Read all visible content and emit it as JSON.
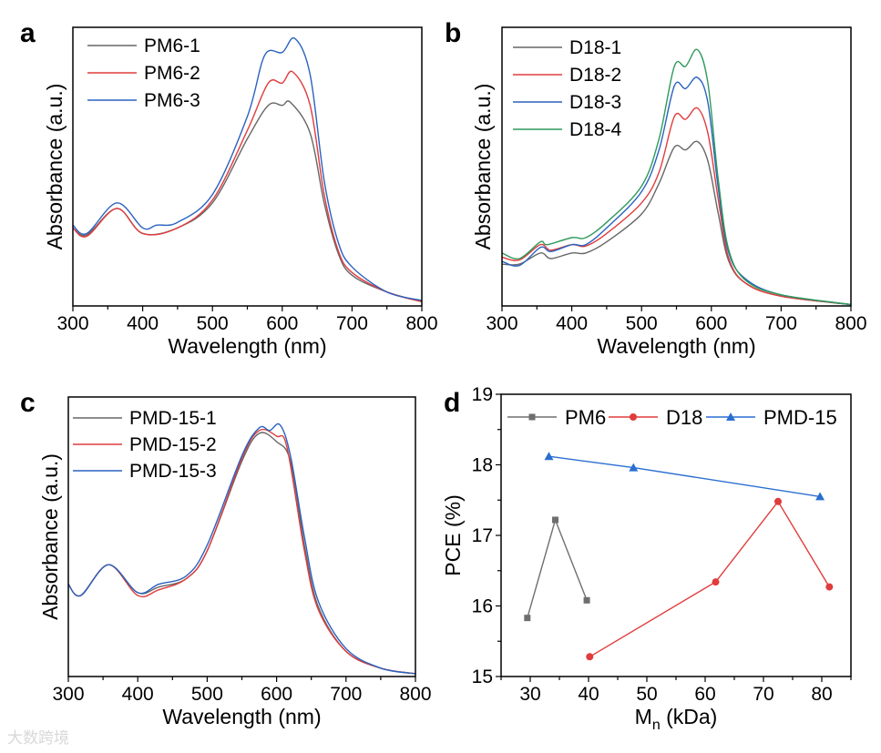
{
  "watermark": "大数跨境",
  "chart_data": [
    {
      "panel": "a",
      "type": "line",
      "xlabel": "Wavelength (nm)",
      "ylabel": "Absorbance (a.u.)",
      "xlim": [
        300,
        800
      ],
      "ylim": [
        0,
        1
      ],
      "xticks": [
        300,
        400,
        500,
        600,
        700,
        800
      ],
      "legend_position": "top-left",
      "series": [
        {
          "name": "PM6-1",
          "color": "#666666",
          "x": [
            300,
            320,
            363,
            400,
            450,
            500,
            550,
            580,
            600,
            612,
            640,
            660,
            680,
            700,
            750,
            800
          ],
          "y": [
            0.28,
            0.255,
            0.35,
            0.26,
            0.28,
            0.37,
            0.6,
            0.72,
            0.72,
            0.73,
            0.62,
            0.37,
            0.19,
            0.11,
            0.05,
            0.015
          ]
        },
        {
          "name": "PM6-2",
          "color": "#e03c3c",
          "x": [
            300,
            320,
            363,
            400,
            450,
            500,
            550,
            580,
            600,
            615,
            640,
            660,
            680,
            700,
            750,
            800
          ],
          "y": [
            0.28,
            0.25,
            0.35,
            0.26,
            0.28,
            0.38,
            0.63,
            0.8,
            0.8,
            0.84,
            0.72,
            0.4,
            0.2,
            0.12,
            0.05,
            0.015
          ]
        },
        {
          "name": "PM6-3",
          "color": "#2a62c0",
          "x": [
            300,
            320,
            363,
            400,
            420,
            450,
            500,
            550,
            575,
            600,
            618,
            640,
            660,
            680,
            700,
            750,
            800
          ],
          "y": [
            0.29,
            0.26,
            0.37,
            0.28,
            0.29,
            0.3,
            0.4,
            0.68,
            0.9,
            0.91,
            0.96,
            0.83,
            0.45,
            0.23,
            0.14,
            0.05,
            0.02
          ]
        }
      ]
    },
    {
      "panel": "b",
      "type": "line",
      "xlabel": "Wavelength (nm)",
      "ylabel": "Absorbance (a.u.)",
      "xlim": [
        300,
        800
      ],
      "ylim": [
        0,
        1
      ],
      "xticks": [
        300,
        400,
        500,
        600,
        700,
        800
      ],
      "legend_position": "top-left",
      "series": [
        {
          "name": "D18-1",
          "color": "#666666",
          "x": [
            300,
            325,
            355,
            370,
            400,
            420,
            450,
            500,
            525,
            547,
            563,
            580,
            595,
            610,
            625,
            650,
            700,
            800
          ],
          "y": [
            0.15,
            0.15,
            0.19,
            0.17,
            0.19,
            0.19,
            0.23,
            0.33,
            0.44,
            0.57,
            0.56,
            0.59,
            0.52,
            0.33,
            0.16,
            0.08,
            0.035,
            0.005
          ]
        },
        {
          "name": "D18-2",
          "color": "#e03c3c",
          "x": [
            300,
            325,
            355,
            370,
            400,
            420,
            450,
            500,
            525,
            547,
            563,
            580,
            595,
            610,
            625,
            650,
            700,
            800
          ],
          "y": [
            0.175,
            0.165,
            0.22,
            0.2,
            0.22,
            0.215,
            0.26,
            0.37,
            0.48,
            0.68,
            0.67,
            0.71,
            0.62,
            0.38,
            0.17,
            0.08,
            0.035,
            0.005
          ]
        },
        {
          "name": "D18-3",
          "color": "#2a62c0",
          "x": [
            300,
            325,
            355,
            370,
            400,
            420,
            450,
            500,
            525,
            547,
            563,
            580,
            595,
            610,
            625,
            650,
            700,
            800
          ],
          "y": [
            0.16,
            0.145,
            0.21,
            0.195,
            0.22,
            0.22,
            0.28,
            0.41,
            0.56,
            0.79,
            0.78,
            0.82,
            0.73,
            0.42,
            0.19,
            0.095,
            0.04,
            0.005
          ]
        },
        {
          "name": "D18-4",
          "color": "#2e9a5a",
          "x": [
            300,
            325,
            355,
            365,
            400,
            420,
            450,
            500,
            525,
            547,
            563,
            580,
            595,
            610,
            625,
            650,
            700,
            800
          ],
          "y": [
            0.19,
            0.17,
            0.23,
            0.22,
            0.245,
            0.245,
            0.3,
            0.43,
            0.6,
            0.86,
            0.86,
            0.92,
            0.8,
            0.45,
            0.2,
            0.09,
            0.04,
            0.005
          ]
        }
      ]
    },
    {
      "panel": "c",
      "type": "line",
      "xlabel": "Wavelength (nm)",
      "ylabel": "Absorbance (a.u.)",
      "xlim": [
        300,
        800
      ],
      "ylim": [
        0,
        1
      ],
      "xticks": [
        300,
        400,
        500,
        600,
        700,
        800
      ],
      "legend_position": "top-left",
      "series": [
        {
          "name": "PMD-15-1",
          "color": "#666666",
          "x": [
            300,
            318,
            358,
            400,
            430,
            470,
            500,
            550,
            575,
            600,
            620,
            640,
            660,
            700,
            750,
            800
          ],
          "y": [
            0.33,
            0.29,
            0.4,
            0.3,
            0.32,
            0.35,
            0.45,
            0.77,
            0.87,
            0.84,
            0.77,
            0.47,
            0.25,
            0.09,
            0.03,
            0.01
          ]
        },
        {
          "name": "PMD-15-2",
          "color": "#e03c3c",
          "x": [
            300,
            318,
            358,
            400,
            430,
            470,
            500,
            550,
            575,
            600,
            615,
            640,
            660,
            700,
            750,
            800
          ],
          "y": [
            0.33,
            0.29,
            0.4,
            0.29,
            0.31,
            0.35,
            0.45,
            0.78,
            0.88,
            0.86,
            0.82,
            0.45,
            0.24,
            0.09,
            0.03,
            0.01
          ]
        },
        {
          "name": "PMD-15-3",
          "color": "#2a62c0",
          "x": [
            300,
            318,
            358,
            400,
            430,
            470,
            500,
            550,
            575,
            590,
            605,
            620,
            640,
            660,
            700,
            750,
            800
          ],
          "y": [
            0.33,
            0.29,
            0.4,
            0.3,
            0.33,
            0.36,
            0.47,
            0.79,
            0.89,
            0.88,
            0.9,
            0.79,
            0.5,
            0.27,
            0.1,
            0.03,
            0.01
          ]
        }
      ]
    },
    {
      "panel": "d",
      "type": "line",
      "xlabel": "M",
      "xlabel_sub": "n",
      "xlabel_rest": " (kDa)",
      "ylabel": "PCE (%)",
      "xlim": [
        25,
        85
      ],
      "ylim": [
        15,
        19
      ],
      "xticks": [
        30,
        40,
        50,
        60,
        70,
        80
      ],
      "yticks": [
        15,
        16,
        17,
        18,
        19
      ],
      "legend_position": "top",
      "series": [
        {
          "name": "PM6",
          "color": "#6e6e6e",
          "marker": "square",
          "x": [
            29.5,
            34.3,
            39.7
          ],
          "y": [
            15.83,
            17.22,
            16.08
          ]
        },
        {
          "name": "D18",
          "color": "#e03c3c",
          "marker": "circle",
          "x": [
            40.2,
            61.8,
            72.5,
            81.3
          ],
          "y": [
            15.28,
            16.34,
            17.48,
            16.27
          ]
        },
        {
          "name": "PMD-15",
          "color": "#2a6fd0",
          "marker": "triangle",
          "x": [
            33.2,
            47.7,
            79.7
          ],
          "y": [
            18.12,
            17.96,
            17.55
          ]
        }
      ]
    }
  ]
}
